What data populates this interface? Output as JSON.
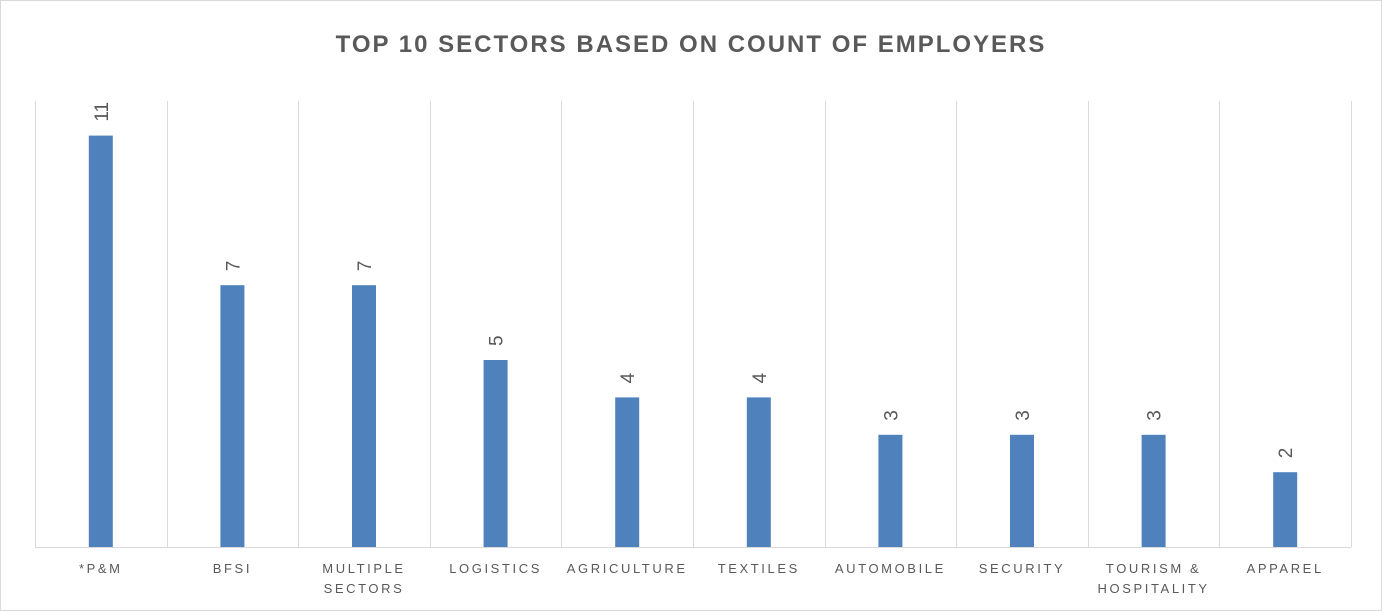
{
  "chart_data": {
    "type": "bar",
    "title": "TOP 10 SECTORS BASED ON COUNT OF EMPLOYERS",
    "categories": [
      "*P&M",
      "BFSI",
      "MULTIPLE SECTORS",
      "LOGISTICS",
      "AGRICULTURE",
      "TEXTILES",
      "AUTOMOBILE",
      "SECURITY",
      "TOURISM & HOSPITALITY",
      "APPAREL"
    ],
    "category_label_lines": [
      [
        "*P&M"
      ],
      [
        "BFSI"
      ],
      [
        "MULTIPLE",
        "SECTORS"
      ],
      [
        "LOGISTICS"
      ],
      [
        "AGRICULTURE"
      ],
      [
        "TEXTILES"
      ],
      [
        "AUTOMOBILE"
      ],
      [
        "SECURITY"
      ],
      [
        "TOURISM &",
        "HOSPITALITY"
      ],
      [
        "APPAREL"
      ]
    ],
    "values": [
      11,
      7,
      7,
      5,
      4,
      4,
      3,
      3,
      3,
      2
    ],
    "ylim": [
      0,
      12
    ],
    "xlabel": "",
    "ylabel": "",
    "bar_color": "#4f81bd",
    "gridlines": "vertical category separators",
    "legend": "none",
    "data_labels": "rotated, above bars"
  }
}
